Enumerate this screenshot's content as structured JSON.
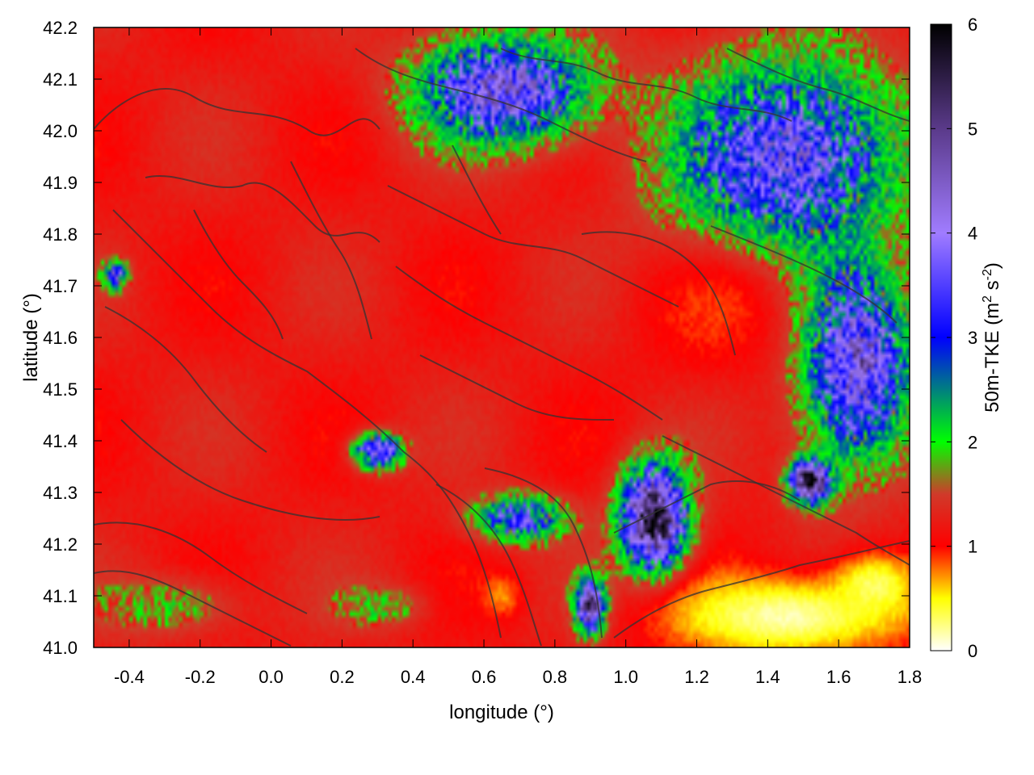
{
  "chart_data": {
    "type": "heatmap",
    "title": "",
    "xlabel": "longitude (°)",
    "ylabel": "latitude (°)",
    "xlim": [
      -0.5,
      1.8
    ],
    "ylim": [
      41.0,
      42.2
    ],
    "x_ticks": [
      "-0.4",
      "-0.2",
      "0.0",
      "0.2",
      "0.4",
      "0.6",
      "0.8",
      "1.0",
      "1.2",
      "1.4",
      "1.6",
      "1.8"
    ],
    "y_ticks": [
      "41.0",
      "41.1",
      "41.2",
      "41.3",
      "41.4",
      "41.5",
      "41.6",
      "41.7",
      "41.8",
      "41.9",
      "42.0",
      "42.1",
      "42.2"
    ],
    "colorbar": {
      "label_main": "50m-TKE (m",
      "label_sup1": "2",
      "label_mid": " s",
      "label_sup2": "-2",
      "label_end": ")",
      "range": [
        0,
        6
      ],
      "ticks": [
        "0",
        "1",
        "2",
        "3",
        "4",
        "5",
        "6"
      ],
      "stops": [
        {
          "v": 0.0,
          "color": "#ffffff"
        },
        {
          "v": 0.5,
          "color": "#ffff00"
        },
        {
          "v": 1.0,
          "color": "#ff0000"
        },
        {
          "v": 1.5,
          "color": "#d03a2a"
        },
        {
          "v": 2.0,
          "color": "#00ff00"
        },
        {
          "v": 3.0,
          "color": "#0000ff"
        },
        {
          "v": 4.0,
          "color": "#a07cff"
        },
        {
          "v": 5.0,
          "color": "#5a3a8a"
        },
        {
          "v": 6.0,
          "color": "#000000"
        }
      ]
    },
    "grid": false,
    "legend": "right colorbar",
    "regions": [
      {
        "desc": "background",
        "value": 1.2
      },
      {
        "desc": "northeast",
        "lon": 1.45,
        "lat": 41.95,
        "value": 3.8,
        "rx": 0.38,
        "ry": 0.22
      },
      {
        "desc": "north-central",
        "lon": 0.65,
        "lat": 42.08,
        "value": 4.2,
        "rx": 0.28,
        "ry": 0.12
      },
      {
        "desc": "east",
        "lon": 1.65,
        "lat": 41.55,
        "value": 4.3,
        "rx": 0.18,
        "ry": 0.22
      },
      {
        "desc": "dark east",
        "lon": 1.52,
        "lat": 41.32,
        "value": 5.8,
        "rx": 0.07,
        "ry": 0.05
      },
      {
        "desc": "dark ridge",
        "lon": 1.08,
        "lat": 41.25,
        "value": 5.7,
        "rx": 0.11,
        "ry": 0.12
      },
      {
        "desc": "dark ridge south",
        "lon": 0.9,
        "lat": 41.08,
        "value": 5.5,
        "rx": 0.05,
        "ry": 0.06
      },
      {
        "desc": "southeast sea",
        "lon": 1.45,
        "lat": 41.06,
        "value": 0.15,
        "rx": 0.42,
        "ry": 0.1
      },
      {
        "desc": "southeast sea edge",
        "lon": 1.7,
        "lat": 41.12,
        "value": 0.3,
        "rx": 0.15,
        "ry": 0.08
      },
      {
        "desc": "southwest",
        "lon": -0.3,
        "lat": 41.08,
        "value": 1.8,
        "rx": 0.25,
        "ry": 0.07
      },
      {
        "desc": "south-central",
        "lon": 0.3,
        "lat": 41.08,
        "value": 1.9,
        "rx": 0.15,
        "ry": 0.05
      },
      {
        "desc": "central band",
        "lon": 0.3,
        "lat": 41.38,
        "value": 4.0,
        "rx": 0.08,
        "ry": 0.04
      },
      {
        "desc": "river band",
        "lon": 0.7,
        "lat": 41.25,
        "value": 3.5,
        "rx": 0.15,
        "ry": 0.05
      },
      {
        "desc": "orange spot",
        "lon": 0.65,
        "lat": 41.1,
        "value": 0.7,
        "rx": 0.07,
        "ry": 0.05
      },
      {
        "desc": "orange east",
        "lon": 1.25,
        "lat": 41.65,
        "value": 0.9,
        "rx": 0.25,
        "ry": 0.15
      },
      {
        "desc": "west spot",
        "lon": -0.44,
        "lat": 41.72,
        "value": 3.8,
        "rx": 0.04,
        "ry": 0.03
      }
    ]
  }
}
